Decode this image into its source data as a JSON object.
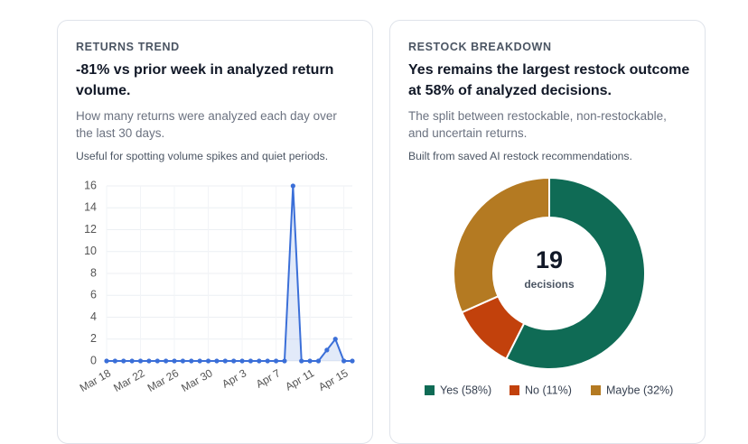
{
  "chart_data": [
    {
      "type": "line",
      "title": "RETURNS TREND",
      "headline": "-81% vs prior week in analyzed return volume.",
      "subtitle": "How many returns were analyzed each day over the last 30 days.",
      "note": "Useful for spotting volume spikes and quiet periods.",
      "categories": [
        "Mar 18",
        null,
        null,
        null,
        "Mar 22",
        null,
        null,
        null,
        "Mar 26",
        null,
        null,
        null,
        "Mar 30",
        null,
        null,
        null,
        "Apr 3",
        null,
        null,
        null,
        "Apr 7",
        null,
        null,
        null,
        "Apr 11",
        null,
        null,
        null,
        "Apr 15",
        null
      ],
      "values": [
        0,
        0,
        0,
        0,
        0,
        0,
        0,
        0,
        0,
        0,
        0,
        0,
        0,
        0,
        0,
        0,
        0,
        0,
        0,
        0,
        0,
        0,
        16,
        0,
        0,
        0,
        1,
        2,
        0,
        0
      ],
      "color": "#3b6fd8",
      "ylim": [
        0,
        16
      ],
      "yticks": [
        0,
        2,
        4,
        6,
        8,
        10,
        12,
        14,
        16
      ],
      "grid": true
    },
    {
      "type": "donut",
      "title": "RESTOCK BREAKDOWN",
      "headline": "Yes remains the largest restock outcome at 58% of analyzed decisions.",
      "subtitle": "The split between restockable, non-restockable, and uncertain returns.",
      "note": "Built from saved AI restock recommendations.",
      "center_value": 19,
      "center_label": "decisions",
      "categories": [
        "Yes (58%)",
        "No (11%)",
        "Maybe (32%)"
      ],
      "values": [
        58,
        11,
        32
      ],
      "colors": [
        "#0f6b55",
        "#c2410c",
        "#b47a22"
      ]
    }
  ]
}
